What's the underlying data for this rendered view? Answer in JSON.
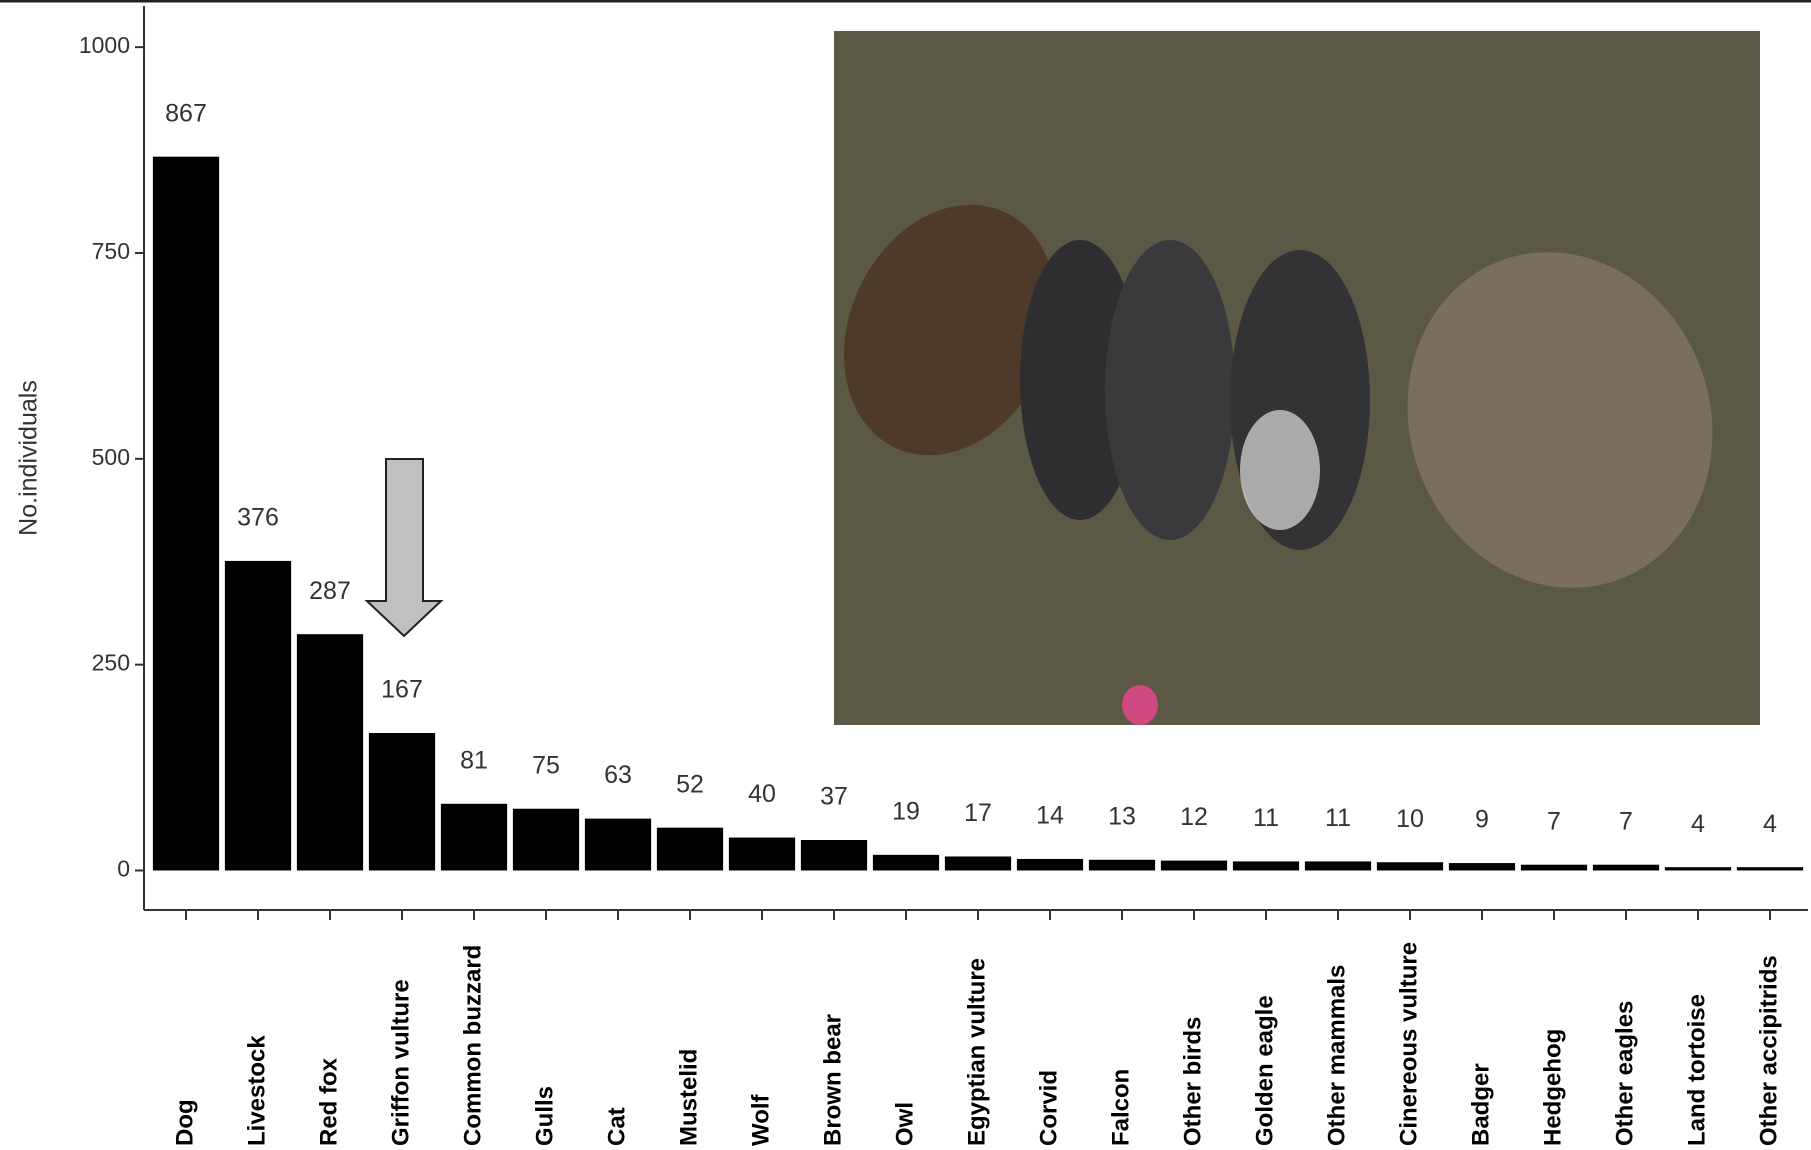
{
  "chart_data": {
    "type": "bar",
    "y_label": "No.individuals",
    "categories": [
      "Dog",
      "Livestock",
      "Red fox",
      "Griffon vulture",
      "Common buzzard",
      "Gulls",
      "Cat",
      "Mustelid",
      "Wolf",
      "Brown bear",
      "Owl",
      "Egyptian vulture",
      "Corvid",
      "Falcon",
      "Other birds",
      "Golden eagle",
      "Other mammals",
      "Cinereous vulture",
      "Badger",
      "Hedgehog",
      "Other eagles",
      "Land tortoise",
      "Other accipitrids"
    ],
    "values": [
      867,
      376,
      287,
      167,
      81,
      75,
      63,
      52,
      40,
      37,
      19,
      17,
      14,
      13,
      12,
      11,
      11,
      10,
      9,
      7,
      7,
      4,
      4
    ],
    "color": "#000000",
    "ylim": [
      -48,
      1050
    ],
    "yticks": [
      0,
      250,
      500,
      750,
      1000
    ]
  }
}
